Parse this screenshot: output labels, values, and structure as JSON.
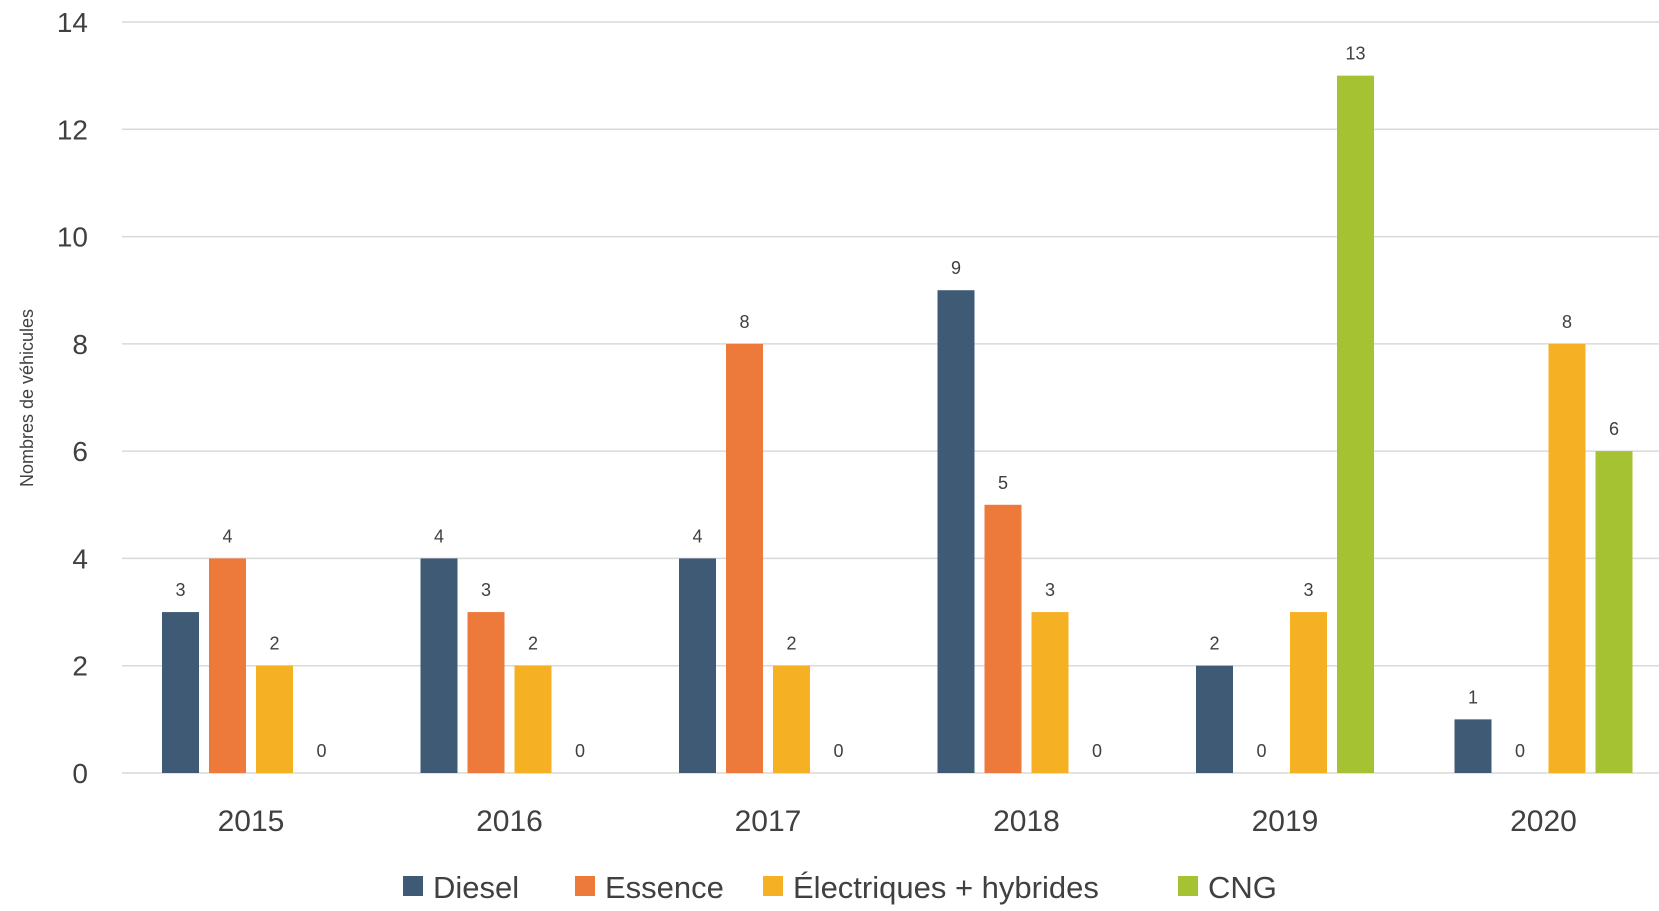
{
  "chart_data": {
    "type": "bar",
    "title": "",
    "xlabel": "",
    "ylabel": "Nombres de véhicules",
    "ylim": [
      0,
      14
    ],
    "yticks": [
      0,
      2,
      4,
      6,
      8,
      10,
      12,
      14
    ],
    "grid": true,
    "legend_position": "bottom",
    "categories": [
      "2015",
      "2016",
      "2017",
      "2018",
      "2019",
      "2020"
    ],
    "series": [
      {
        "name": "Diesel",
        "color": "#3f5a75",
        "values": [
          3,
          4,
          4,
          9,
          2,
          1
        ]
      },
      {
        "name": "Essence",
        "color": "#ed7a3b",
        "values": [
          4,
          3,
          8,
          5,
          0,
          0
        ]
      },
      {
        "name": "Électriques +  hybrides",
        "color": "#f5b024",
        "values": [
          2,
          2,
          2,
          3,
          3,
          8
        ]
      },
      {
        "name": "CNG",
        "color": "#a4c232",
        "values": [
          0,
          0,
          0,
          0,
          13,
          6
        ]
      }
    ]
  }
}
